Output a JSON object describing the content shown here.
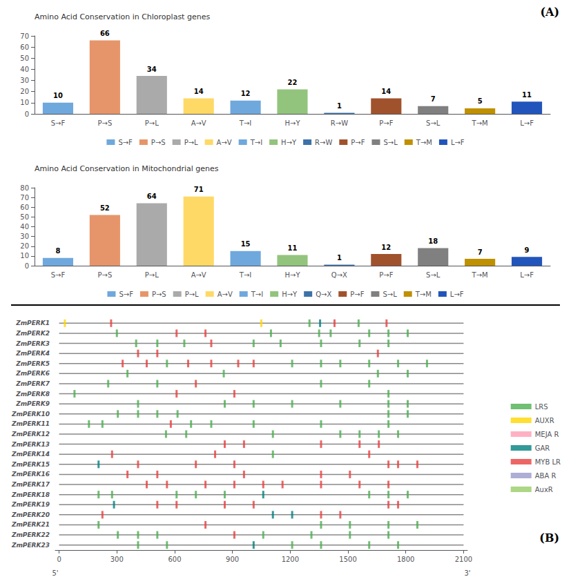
{
  "chart_data": [
    {
      "type": "bar",
      "title": "(A)",
      "ylabel": "Amino Acid Conservation in Chloroplast genes",
      "categories": [
        "S→F",
        "P→S",
        "P→L",
        "A→V",
        "T→I",
        "H→Y",
        "R→W",
        "P→F",
        "S→L",
        "T→M",
        "L→F"
      ],
      "values": [
        10,
        66,
        34,
        14,
        12,
        22,
        1,
        14,
        7,
        5,
        11
      ],
      "colors": [
        "#6fa8dc",
        "#e6956a",
        "#aaaaaa",
        "#ffd966",
        "#6fa8dc",
        "#93c47d",
        "#3d72a8",
        "#a0522d",
        "#808080",
        "#bf9000",
        "#2255bb"
      ],
      "ylim": [
        0,
        70
      ],
      "yticks": [
        0,
        10,
        20,
        30,
        40,
        50,
        60,
        70
      ],
      "data_labels": true,
      "legend": "bottom",
      "grid": false
    },
    {
      "type": "bar",
      "ylabel": "Amino Acid Conservation in Mitochondrial genes",
      "categories": [
        "S→F",
        "P→S",
        "P→L",
        "A→V",
        "T→I",
        "H→Y",
        "Q→X",
        "P→F",
        "S→L",
        "T→M",
        "L→F"
      ],
      "values": [
        8,
        52,
        64,
        71,
        15,
        11,
        1,
        12,
        18,
        7,
        9
      ],
      "colors": [
        "#6fa8dc",
        "#e6956a",
        "#aaaaaa",
        "#ffd966",
        "#6fa8dc",
        "#93c47d",
        "#3d72a8",
        "#a0522d",
        "#808080",
        "#bf9000",
        "#2255bb"
      ],
      "ylim": [
        0,
        80
      ],
      "yticks": [
        0,
        10,
        20,
        30,
        40,
        50,
        60,
        70,
        80
      ],
      "data_labels": true,
      "legend": "bottom",
      "grid": false
    },
    {
      "type": "scatter",
      "title": "(B)",
      "categories": [
        "ZmPERK1",
        "ZmPERK2",
        "ZmPERK3",
        "ZmPERK4",
        "ZmPERK5",
        "ZmPERK6",
        "ZmPERK7",
        "ZmPERK8",
        "ZmPERK9",
        "ZmPERK10",
        "ZmPERK11",
        "ZmPERK12",
        "ZmPERK13",
        "ZmPERK14",
        "ZmPERK15",
        "ZmPERK16",
        "ZmPERK17",
        "ZmPERK18",
        "ZmPERK19",
        "ZmPERK20",
        "ZmPERK21",
        "ZmPERK22",
        "ZmPERK23"
      ],
      "xlim": [
        -20,
        2120
      ],
      "xticks": [
        0,
        300,
        600,
        900,
        1200,
        1500,
        1800,
        2100
      ],
      "gene_range": [
        0,
        2100
      ],
      "annotations": [
        {
          "text": "5'",
          "x": -20
        },
        {
          "text": "3'",
          "x": 2120
        }
      ],
      "legend": "right",
      "grid": false,
      "marker": "vline",
      "series": [
        {
          "name": "LRS",
          "color": "#4caf50",
          "points": [
            [
              1300,
              "ZmPERK1"
            ],
            [
              1555,
              "ZmPERK1"
            ],
            [
              300,
              "ZmPERK2"
            ],
            [
              1100,
              "ZmPERK2"
            ],
            [
              1350,
              "ZmPERK2"
            ],
            [
              1410,
              "ZmPERK2"
            ],
            [
              1610,
              "ZmPERK2"
            ],
            [
              1710,
              "ZmPERK2"
            ],
            [
              1810,
              "ZmPERK2"
            ],
            [
              400,
              "ZmPERK3"
            ],
            [
              510,
              "ZmPERK3"
            ],
            [
              650,
              "ZmPERK3"
            ],
            [
              1010,
              "ZmPERK3"
            ],
            [
              1150,
              "ZmPERK3"
            ],
            [
              1360,
              "ZmPERK3"
            ],
            [
              1560,
              "ZmPERK3"
            ],
            [
              1710,
              "ZmPERK3"
            ],
            [
              560,
              "ZmPERK5"
            ],
            [
              1210,
              "ZmPERK5"
            ],
            [
              1360,
              "ZmPERK5"
            ],
            [
              1460,
              "ZmPERK5"
            ],
            [
              1610,
              "ZmPERK5"
            ],
            [
              1760,
              "ZmPERK5"
            ],
            [
              1910,
              "ZmPERK5"
            ],
            [
              355,
              "ZmPERK6"
            ],
            [
              855,
              "ZmPERK6"
            ],
            [
              1655,
              "ZmPERK6"
            ],
            [
              1810,
              "ZmPERK6"
            ],
            [
              255,
              "ZmPERK7"
            ],
            [
              510,
              "ZmPERK7"
            ],
            [
              1360,
              "ZmPERK7"
            ],
            [
              1610,
              "ZmPERK7"
            ],
            [
              80,
              "ZmPERK8"
            ],
            [
              1710,
              "ZmPERK8"
            ],
            [
              410,
              "ZmPERK9"
            ],
            [
              860,
              "ZmPERK9"
            ],
            [
              1010,
              "ZmPERK9"
            ],
            [
              1210,
              "ZmPERK9"
            ],
            [
              1460,
              "ZmPERK9"
            ],
            [
              1710,
              "ZmPERK9"
            ],
            [
              1810,
              "ZmPERK9"
            ],
            [
              305,
              "ZmPERK10"
            ],
            [
              410,
              "ZmPERK10"
            ],
            [
              510,
              "ZmPERK10"
            ],
            [
              615,
              "ZmPERK10"
            ],
            [
              1710,
              "ZmPERK10"
            ],
            [
              1810,
              "ZmPERK10"
            ],
            [
              155,
              "ZmPERK11"
            ],
            [
              225,
              "ZmPERK11"
            ],
            [
              685,
              "ZmPERK11"
            ],
            [
              790,
              "ZmPERK11"
            ],
            [
              1010,
              "ZmPERK11"
            ],
            [
              1360,
              "ZmPERK11"
            ],
            [
              1710,
              "ZmPERK11"
            ],
            [
              555,
              "ZmPERK12"
            ],
            [
              660,
              "ZmPERK12"
            ],
            [
              1110,
              "ZmPERK12"
            ],
            [
              1460,
              "ZmPERK12"
            ],
            [
              1560,
              "ZmPERK12"
            ],
            [
              1660,
              "ZmPERK12"
            ],
            [
              1760,
              "ZmPERK12"
            ],
            [
              1110,
              "ZmPERK14"
            ],
            [
              205,
              "ZmPERK18"
            ],
            [
              275,
              "ZmPERK18"
            ],
            [
              610,
              "ZmPERK18"
            ],
            [
              710,
              "ZmPERK18"
            ],
            [
              860,
              "ZmPERK18"
            ],
            [
              1610,
              "ZmPERK18"
            ],
            [
              1710,
              "ZmPERK18"
            ],
            [
              1810,
              "ZmPERK18"
            ],
            [
              205,
              "ZmPERK21"
            ],
            [
              1360,
              "ZmPERK21"
            ],
            [
              1510,
              "ZmPERK21"
            ],
            [
              1710,
              "ZmPERK21"
            ],
            [
              1860,
              "ZmPERK21"
            ],
            [
              305,
              "ZmPERK22"
            ],
            [
              410,
              "ZmPERK22"
            ],
            [
              510,
              "ZmPERK22"
            ],
            [
              1060,
              "ZmPERK22"
            ],
            [
              1310,
              "ZmPERK22"
            ],
            [
              1510,
              "ZmPERK22"
            ],
            [
              1710,
              "ZmPERK22"
            ],
            [
              410,
              "ZmPERK23"
            ],
            [
              560,
              "ZmPERK23"
            ],
            [
              1210,
              "ZmPERK23"
            ],
            [
              1360,
              "ZmPERK23"
            ],
            [
              1610,
              "ZmPERK23"
            ],
            [
              1760,
              "ZmPERK23"
            ]
          ]
        },
        {
          "name": "AUXR",
          "color": "#ffd700",
          "points": [
            [
              30,
              "ZmPERK1"
            ],
            [
              1050,
              "ZmPERK1"
            ]
          ]
        },
        {
          "name": "MEJA R",
          "color": "#ff9eb5",
          "points": []
        },
        {
          "name": "GAR",
          "color": "#008080",
          "points": [
            [
              1355,
              "ZmPERK1"
            ],
            [
              205,
              "ZmPERK15"
            ],
            [
              1060,
              "ZmPERK18"
            ],
            [
              285,
              "ZmPERK19"
            ],
            [
              1110,
              "ZmPERK20"
            ],
            [
              1210,
              "ZmPERK20"
            ],
            [
              1010,
              "ZmPERK23"
            ]
          ]
        },
        {
          "name": "MYB LR",
          "color": "#e84040",
          "points": [
            [
              270,
              "ZmPERK1"
            ],
            [
              1430,
              "ZmPERK1"
            ],
            [
              1700,
              "ZmPERK1"
            ],
            [
              610,
              "ZmPERK2"
            ],
            [
              760,
              "ZmPERK2"
            ],
            [
              790,
              "ZmPERK3"
            ],
            [
              410,
              "ZmPERK4"
            ],
            [
              510,
              "ZmPERK4"
            ],
            [
              1655,
              "ZmPERK4"
            ],
            [
              330,
              "ZmPERK5"
            ],
            [
              455,
              "ZmPERK5"
            ],
            [
              670,
              "ZmPERK5"
            ],
            [
              790,
              "ZmPERK5"
            ],
            [
              930,
              "ZmPERK5"
            ],
            [
              1010,
              "ZmPERK5"
            ],
            [
              710,
              "ZmPERK7"
            ],
            [
              610,
              "ZmPERK8"
            ],
            [
              910,
              "ZmPERK8"
            ],
            [
              580,
              "ZmPERK11"
            ],
            [
              860,
              "ZmPERK13"
            ],
            [
              960,
              "ZmPERK13"
            ],
            [
              1360,
              "ZmPERK13"
            ],
            [
              1560,
              "ZmPERK13"
            ],
            [
              1660,
              "ZmPERK13"
            ],
            [
              275,
              "ZmPERK14"
            ],
            [
              810,
              "ZmPERK14"
            ],
            [
              1610,
              "ZmPERK14"
            ],
            [
              410,
              "ZmPERK15"
            ],
            [
              710,
              "ZmPERK15"
            ],
            [
              910,
              "ZmPERK15"
            ],
            [
              1710,
              "ZmPERK15"
            ],
            [
              1760,
              "ZmPERK15"
            ],
            [
              1860,
              "ZmPERK15"
            ],
            [
              355,
              "ZmPERK16"
            ],
            [
              510,
              "ZmPERK16"
            ],
            [
              960,
              "ZmPERK16"
            ],
            [
              1360,
              "ZmPERK16"
            ],
            [
              1510,
              "ZmPERK16"
            ],
            [
              455,
              "ZmPERK17"
            ],
            [
              560,
              "ZmPERK17"
            ],
            [
              760,
              "ZmPERK17"
            ],
            [
              910,
              "ZmPERK17"
            ],
            [
              1060,
              "ZmPERK17"
            ],
            [
              1160,
              "ZmPERK17"
            ],
            [
              1360,
              "ZmPERK17"
            ],
            [
              1560,
              "ZmPERK17"
            ],
            [
              1710,
              "ZmPERK17"
            ],
            [
              510,
              "ZmPERK19"
            ],
            [
              610,
              "ZmPERK19"
            ],
            [
              860,
              "ZmPERK19"
            ],
            [
              1010,
              "ZmPERK19"
            ],
            [
              1710,
              "ZmPERK19"
            ],
            [
              1760,
              "ZmPERK19"
            ],
            [
              225,
              "ZmPERK20"
            ],
            [
              1360,
              "ZmPERK20"
            ],
            [
              1460,
              "ZmPERK20"
            ],
            [
              760,
              "ZmPERK21"
            ],
            [
              910,
              "ZmPERK22"
            ]
          ]
        },
        {
          "name": "ABA R",
          "color": "#9999cc",
          "points": []
        },
        {
          "name": "AuxR",
          "color": "#99cc66",
          "points": []
        }
      ]
    }
  ]
}
